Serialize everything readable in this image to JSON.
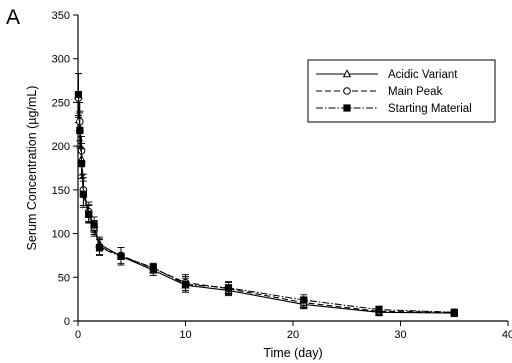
{
  "panel_label": "A",
  "chart_data": {
    "type": "line",
    "xlabel": "Time (day)",
    "ylabel": "Serum Concentration (µg/mL)",
    "xlim": [
      0,
      40
    ],
    "ylim": [
      0,
      350
    ],
    "x_ticks": [
      0,
      10,
      20,
      30,
      40
    ],
    "y_ticks": [
      0,
      50,
      100,
      150,
      200,
      250,
      300,
      350
    ],
    "x_tick_labels": [
      "0",
      "10",
      "20",
      "30",
      "40"
    ],
    "y_tick_labels": [
      "0",
      "50",
      "100",
      "150",
      "200",
      "250",
      "300",
      "350"
    ],
    "grid": false,
    "legend_position": "top-right",
    "x": [
      0.04,
      0.17,
      0.33,
      0.5,
      1,
      1.5,
      2,
      4,
      7,
      10,
      14,
      21,
      28,
      35
    ],
    "series": [
      {
        "name": "Acidic Variant",
        "marker": "triangle-open",
        "dash": "solid",
        "values": [
          258,
          220,
          185,
          148,
          123,
          106,
          88,
          74,
          58,
          41,
          35,
          19,
          10,
          9
        ],
        "errors": [
          25,
          20,
          18,
          16,
          10,
          9,
          8,
          10,
          6,
          8,
          6,
          5,
          4,
          4
        ]
      },
      {
        "name": "Main Peak",
        "marker": "circle-open",
        "dash": "dash",
        "values": [
          255,
          228,
          195,
          150,
          125,
          107,
          85,
          75,
          60,
          44,
          37,
          21,
          11,
          10
        ],
        "errors": [
          28,
          22,
          16,
          18,
          11,
          8,
          9,
          9,
          5,
          9,
          7,
          6,
          3,
          3
        ]
      },
      {
        "name": "Starting Material",
        "marker": "square-filled",
        "dash": "dashdot",
        "values": [
          259,
          218,
          180,
          145,
          122,
          110,
          84,
          74,
          61,
          42,
          38,
          24,
          13,
          10
        ],
        "errors": [
          24,
          20,
          17,
          15,
          10,
          9,
          9,
          10,
          5,
          9,
          7,
          6,
          4,
          3
        ]
      }
    ]
  }
}
